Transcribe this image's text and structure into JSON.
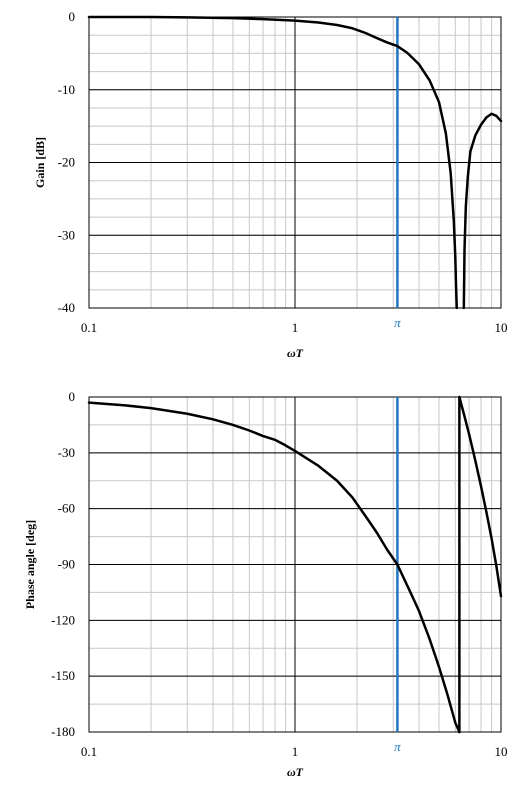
{
  "chart_data": [
    {
      "type": "line",
      "xscale": "log",
      "xlim": [
        0.1,
        10
      ],
      "ylim": [
        -40,
        0
      ],
      "yticks": [
        0,
        -10,
        -20,
        -30,
        -40
      ],
      "ytick_step_minor": 2.5,
      "xtick_labels": [
        "0.1",
        "1",
        "10"
      ],
      "xlabel": "ωT",
      "ylabel": "Gain [dB]",
      "grid": true,
      "marker_line": {
        "x": 3.14159,
        "label": "π",
        "color": "#1f78c1"
      },
      "series": [
        {
          "color": "#000000",
          "points": [
            [
              0.1,
              0.0
            ],
            [
              0.2,
              0.0
            ],
            [
              0.3,
              -0.05
            ],
            [
              0.5,
              -0.15
            ],
            [
              0.7,
              -0.3
            ],
            [
              1.0,
              -0.5
            ],
            [
              1.3,
              -0.75
            ],
            [
              1.6,
              -1.1
            ],
            [
              1.9,
              -1.55
            ],
            [
              2.2,
              -2.2
            ],
            [
              2.5,
              -2.9
            ],
            [
              2.8,
              -3.5
            ],
            [
              3.14,
              -4.0
            ],
            [
              3.5,
              -4.9
            ],
            [
              4.0,
              -6.5
            ],
            [
              4.5,
              -8.7
            ],
            [
              5.0,
              -11.7
            ],
            [
              5.4,
              -16.0
            ],
            [
              5.7,
              -21.5
            ],
            [
              5.9,
              -28.0
            ],
            [
              6.0,
              -33.0
            ],
            [
              6.05,
              -37.0
            ],
            [
              6.1,
              -40.0
            ]
          ]
        },
        {
          "color": "#000000",
          "points": [
            [
              6.6,
              -40.0
            ],
            [
              6.65,
              -32.0
            ],
            [
              6.75,
              -26.0
            ],
            [
              6.9,
              -22.0
            ],
            [
              7.1,
              -18.5
            ],
            [
              7.5,
              -16.3
            ],
            [
              8.0,
              -14.8
            ],
            [
              8.5,
              -13.8
            ],
            [
              9.0,
              -13.3
            ],
            [
              9.5,
              -13.6
            ],
            [
              10.0,
              -14.3
            ]
          ]
        }
      ]
    },
    {
      "type": "line",
      "xscale": "log",
      "xlim": [
        0.1,
        10
      ],
      "ylim": [
        -180,
        0
      ],
      "yticks": [
        0,
        -30,
        -60,
        -90,
        -120,
        -150,
        -180
      ],
      "ytick_step_minor": 15,
      "xtick_labels": [
        "0.1",
        "1",
        "10"
      ],
      "xlabel": "ωT",
      "ylabel": "Phase angle  [deg]",
      "grid": true,
      "marker_line": {
        "x": 3.14159,
        "label": "π",
        "color": "#1f78c1"
      },
      "series": [
        {
          "color": "#000000",
          "points": [
            [
              0.1,
              -3.0
            ],
            [
              0.15,
              -4.5
            ],
            [
              0.2,
              -6.0
            ],
            [
              0.3,
              -9.0
            ],
            [
              0.4,
              -12.0
            ],
            [
              0.5,
              -15.0
            ],
            [
              0.6,
              -18.0
            ],
            [
              0.7,
              -21.0
            ],
            [
              0.8,
              -23.0
            ],
            [
              0.9,
              -26.0
            ],
            [
              1.0,
              -29.0
            ],
            [
              1.3,
              -37.0
            ],
            [
              1.6,
              -45.0
            ],
            [
              1.9,
              -54.0
            ],
            [
              2.2,
              -64.0
            ],
            [
              2.5,
              -73.0
            ],
            [
              2.8,
              -82.0
            ],
            [
              3.14,
              -90.0
            ],
            [
              3.6,
              -104.0
            ],
            [
              4.0,
              -115.0
            ],
            [
              4.5,
              -130.0
            ],
            [
              5.0,
              -145.0
            ],
            [
              5.5,
              -160.0
            ],
            [
              6.0,
              -175.0
            ],
            [
              6.28,
              -180.0
            ]
          ]
        },
        {
          "color": "#000000",
          "points": [
            [
              6.28,
              -180.0
            ],
            [
              6.28,
              0.0
            ]
          ]
        },
        {
          "color": "#000000",
          "points": [
            [
              6.28,
              0.0
            ],
            [
              6.6,
              -9.0
            ],
            [
              7.0,
              -20.0
            ],
            [
              7.5,
              -34.0
            ],
            [
              8.0,
              -48.0
            ],
            [
              8.5,
              -62.0
            ],
            [
              9.0,
              -76.0
            ],
            [
              9.5,
              -91.0
            ],
            [
              10.0,
              -107.0
            ]
          ]
        }
      ]
    }
  ]
}
